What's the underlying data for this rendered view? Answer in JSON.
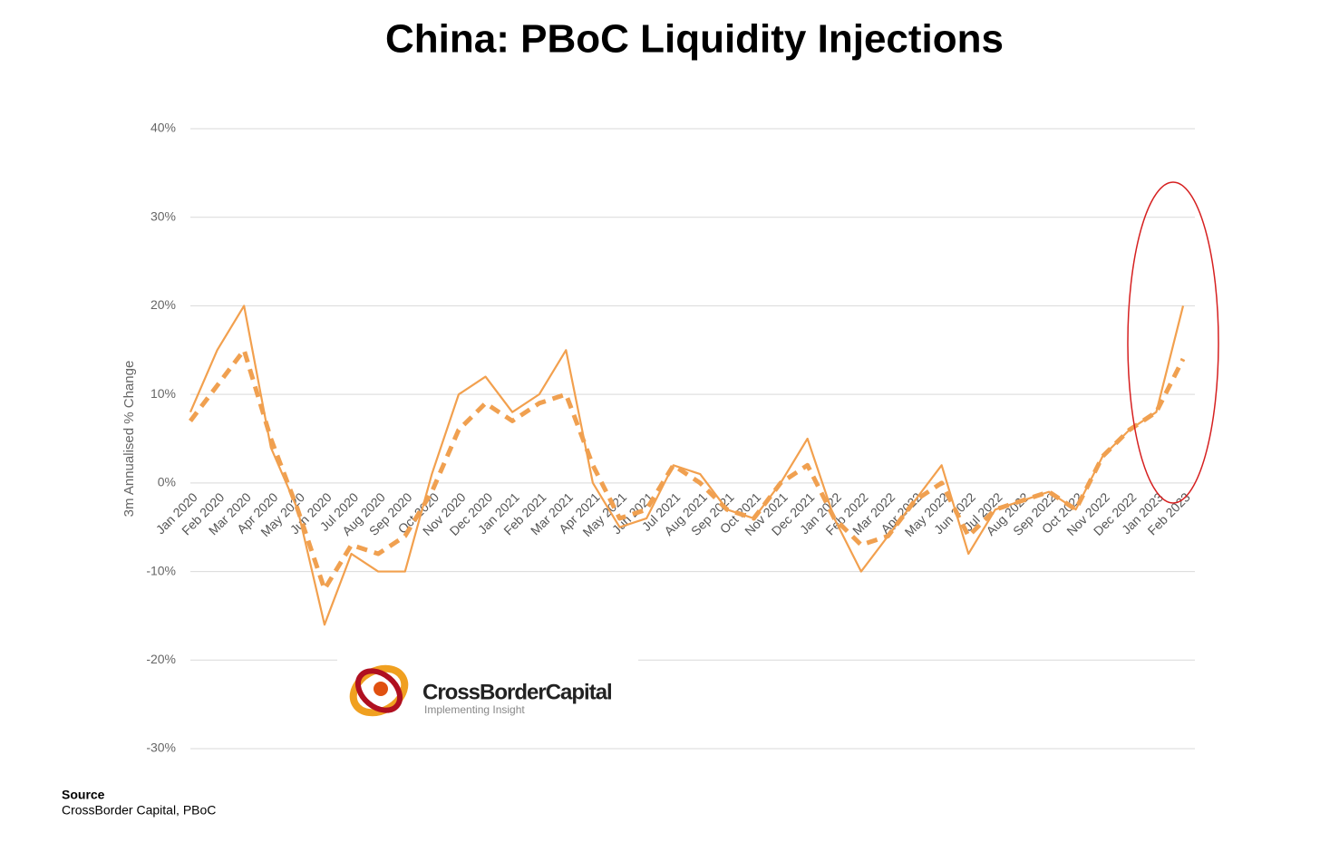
{
  "chart_data": {
    "type": "line",
    "title": "China: PBoC Liquidity Injections",
    "y_label": "3m Annualised % Change",
    "categories": [
      "Jan 2020",
      "Feb 2020",
      "Mar 2020",
      "Apr 2020",
      "May 2020",
      "Jun 2020",
      "Jul 2020",
      "Aug 2020",
      "Sep 2020",
      "Oct 2020",
      "Nov 2020",
      "Dec 2020",
      "Jan 2021",
      "Feb 2021",
      "Mar 2021",
      "Apr 2021",
      "May 2021",
      "Jun 2021",
      "Jul 2021",
      "Aug 2021",
      "Sep 2021",
      "Oct 2021",
      "Nov 2021",
      "Dec 2021",
      "Jan 2022",
      "Feb 2022",
      "Mar 2022",
      "Apr 2022",
      "May 2022",
      "Jun 2022",
      "Jul 2022",
      "Aug 2022",
      "Sep 2022",
      "Oct 2022",
      "Nov 2022",
      "Dec 2022",
      "Jan 2023",
      "Feb 2023"
    ],
    "series": [
      {
        "color": "#f2a04e",
        "dashed": false,
        "values": [
          8,
          15,
          20,
          4,
          -3,
          -16,
          -8,
          -10,
          -10,
          1,
          10,
          12,
          8,
          10,
          15,
          0,
          -5,
          -4,
          2,
          1,
          -3,
          -4,
          0,
          5,
          -4,
          -10,
          -6,
          -2,
          2,
          -8,
          -3,
          -2,
          -1,
          -3,
          3,
          6,
          8,
          20
        ]
      },
      {
        "color": "#f0a050",
        "dashed": true,
        "values": [
          7,
          11,
          15,
          5,
          -3,
          -12,
          -7,
          -8,
          -6,
          -1,
          6,
          9,
          7,
          9,
          10,
          2,
          -4,
          -3,
          2,
          0,
          -3,
          -4,
          0,
          2,
          -4,
          -7,
          -6,
          -2,
          0,
          -6,
          -3,
          -2,
          -1,
          -3,
          3,
          6,
          8,
          14
        ]
      }
    ],
    "ylim": [
      -30,
      40
    ],
    "yticks": [
      {
        "value": -30,
        "label": "-30%"
      },
      {
        "value": -20,
        "label": "-20%"
      },
      {
        "value": -10,
        "label": "-10%"
      },
      {
        "value": 0,
        "label": "0%"
      },
      {
        "value": 10,
        "label": "10%"
      },
      {
        "value": 20,
        "label": "20%"
      },
      {
        "value": 30,
        "label": "30%"
      },
      {
        "value": 40,
        "label": "40%"
      }
    ],
    "grid": true,
    "logo": {
      "name": "CrossBorderCapital",
      "tagline": "Implementing Insight"
    },
    "source": {
      "heading": "Source",
      "text": "CrossBorder Capital, PBoC"
    }
  }
}
